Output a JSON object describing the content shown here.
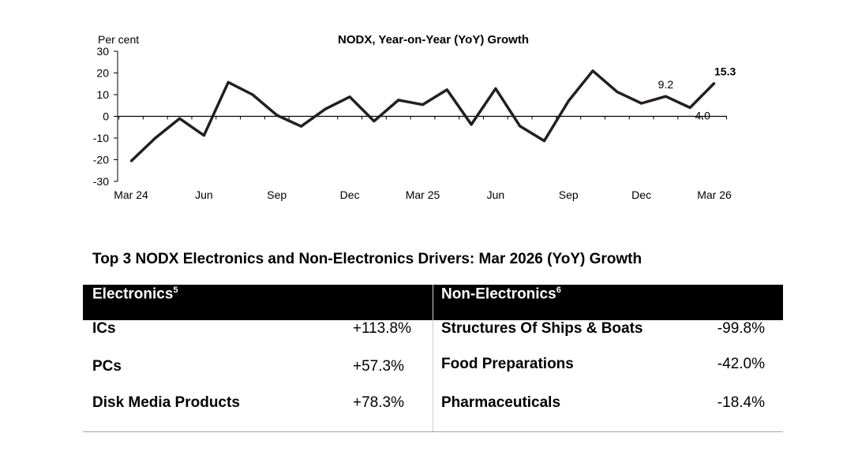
{
  "chart_data": {
    "type": "line",
    "title": "NODX, Year-on-Year (YoY) Growth",
    "ylabel": "Per cent",
    "ylim": [
      -30,
      30
    ],
    "yticks": [
      30,
      20,
      10,
      0,
      -10,
      -20,
      -30
    ],
    "xtick_labels": [
      "Mar 24",
      "Jun",
      "Sep",
      "Dec",
      "Mar 25",
      "Jun",
      "Sep",
      "Dec",
      "Mar 26"
    ],
    "x": [
      "Mar 2024",
      "Apr 2024",
      "May 2024",
      "Jun 2024",
      "Jul 2024",
      "Aug 2024",
      "Sep 2024",
      "Oct 2024",
      "Nov 2024",
      "Dec 2024",
      "Jan 2025",
      "Feb 2025",
      "Mar 2025",
      "Apr 2025",
      "May 2025",
      "Jun 2025",
      "Jul 2025",
      "Aug 2025",
      "Sep 2025",
      "Oct 2025",
      "Nov 2025",
      "Dec 2025",
      "Jan 2026",
      "Feb 2026",
      "Mar 2026"
    ],
    "values": [
      -20.7,
      -10.0,
      -1.0,
      -8.8,
      15.7,
      10.0,
      0.5,
      -4.6,
      3.4,
      9.0,
      -2.2,
      7.5,
      5.4,
      12.3,
      -3.8,
      12.8,
      -4.5,
      -11.3,
      7.1,
      21.0,
      11.3,
      6.0,
      9.2,
      4.0,
      15.3
    ],
    "data_labels": [
      {
        "index": 22,
        "text": "9.2",
        "bold": false
      },
      {
        "index": 23,
        "text": "4.0",
        "bold": false
      },
      {
        "index": 24,
        "text": "15.3",
        "bold": true
      }
    ],
    "line_color": "#231f20"
  },
  "drivers": {
    "title": "Top 3 NODX Electronics and Non-Electronics Drivers: Mar 2026 (YoY) Growth",
    "electronics": {
      "header": "Electronics",
      "footnote": "5",
      "items": [
        {
          "name": "ICs",
          "value": "+113.8%"
        },
        {
          "name": "PCs",
          "value": "+57.3%"
        },
        {
          "name": "Disk Media Products",
          "value": "+78.3%"
        }
      ]
    },
    "non_electronics": {
      "header": "Non-Electronics",
      "footnote": "6",
      "items": [
        {
          "name": "Structures Of Ships & Boats",
          "value": "-99.8%"
        },
        {
          "name": "Food Preparations",
          "value": "-42.0%"
        },
        {
          "name": "Pharmaceuticals",
          "value": "-18.4%"
        }
      ]
    }
  }
}
